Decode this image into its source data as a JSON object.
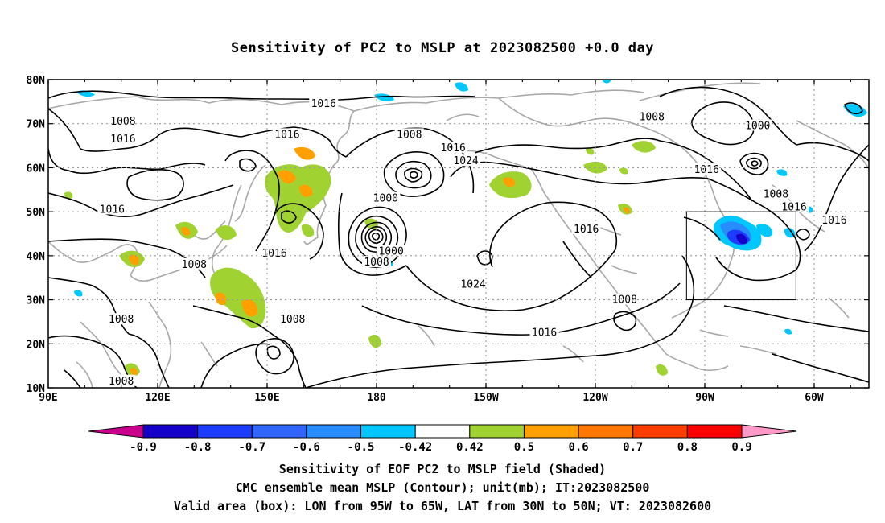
{
  "title": "Sensitivity of PC2 to MSLP at 2023082500 +0.0 day",
  "map": {
    "lon_ticks": [
      {
        "lon": 90,
        "label": "90E"
      },
      {
        "lon": 120,
        "label": "120E"
      },
      {
        "lon": 150,
        "label": "150E"
      },
      {
        "lon": 180,
        "label": "180"
      },
      {
        "lon": 210,
        "label": "150W"
      },
      {
        "lon": 240,
        "label": "120W"
      },
      {
        "lon": 270,
        "label": "90W"
      },
      {
        "lon": 300,
        "label": "60W"
      }
    ],
    "lat_ticks": [
      {
        "lat": 10,
        "label": "10N"
      },
      {
        "lat": 20,
        "label": "20N"
      },
      {
        "lat": 30,
        "label": "30N"
      },
      {
        "lat": 40,
        "label": "40N"
      },
      {
        "lat": 50,
        "label": "50N"
      },
      {
        "lat": 60,
        "label": "60N"
      },
      {
        "lat": 70,
        "label": "70N"
      },
      {
        "lat": 80,
        "label": "80N"
      }
    ],
    "lon_range": [
      90,
      315
    ],
    "lat_range": [
      10,
      80
    ],
    "valid_box": {
      "lon_min": 265,
      "lon_max": 295,
      "lat_min": 30,
      "lat_max": 50
    },
    "contour_labels": [
      {
        "lon": 165.5,
        "lat": 74.5,
        "text": "1016"
      },
      {
        "lon": 110.5,
        "lat": 70.5,
        "text": "1008"
      },
      {
        "lon": 110.5,
        "lat": 66.5,
        "text": "1016"
      },
      {
        "lon": 155.5,
        "lat": 67.5,
        "text": "1016"
      },
      {
        "lon": 107.5,
        "lat": 50.5,
        "text": "1016"
      },
      {
        "lon": 152.0,
        "lat": 40.5,
        "text": "1016"
      },
      {
        "lon": 130.0,
        "lat": 38.0,
        "text": "1008"
      },
      {
        "lon": 110.0,
        "lat": 25.5,
        "text": "1008"
      },
      {
        "lon": 110.0,
        "lat": 11.5,
        "text": "1008"
      },
      {
        "lon": 157.0,
        "lat": 25.5,
        "text": "1008"
      },
      {
        "lon": 189.0,
        "lat": 67.5,
        "text": "1008"
      },
      {
        "lon": 201.0,
        "lat": 64.5,
        "text": "1016"
      },
      {
        "lon": 204.5,
        "lat": 61.5,
        "text": "1024"
      },
      {
        "lon": 182.5,
        "lat": 53.0,
        "text": "1000"
      },
      {
        "lon": 184.0,
        "lat": 41.0,
        "text": "1000"
      },
      {
        "lon": 180.0,
        "lat": 38.5,
        "text": "1008"
      },
      {
        "lon": 206.5,
        "lat": 33.5,
        "text": "1024"
      },
      {
        "lon": 226.0,
        "lat": 22.5,
        "text": "1016"
      },
      {
        "lon": 255.5,
        "lat": 71.5,
        "text": "1008"
      },
      {
        "lon": 237.5,
        "lat": 46.0,
        "text": "1016"
      },
      {
        "lon": 248.0,
        "lat": 30.0,
        "text": "1008"
      },
      {
        "lon": 270.5,
        "lat": 59.5,
        "text": "1016"
      },
      {
        "lon": 284.5,
        "lat": 69.5,
        "text": "1000"
      },
      {
        "lon": 289.5,
        "lat": 54.0,
        "text": "1008"
      },
      {
        "lon": 294.5,
        "lat": 51.0,
        "text": "1016"
      },
      {
        "lon": 305.5,
        "lat": 48.0,
        "text": "1016"
      }
    ]
  },
  "colorbar": {
    "colors": [
      "#c8008c",
      "#1400c8",
      "#1e3cff",
      "#3264ff",
      "#288cff",
      "#00c8ff",
      "#ffffff",
      "#a0d232",
      "#ffa000",
      "#ff7800",
      "#ff3c00",
      "#ff0000",
      "#ff9ac8"
    ],
    "labels": [
      "-0.9",
      "-0.8",
      "-0.7",
      "-0.6",
      "-0.5",
      "-0.42",
      "0.42",
      "0.5",
      "0.6",
      "0.7",
      "0.8",
      "0.9"
    ]
  },
  "footer": {
    "line1": "Sensitivity of EOF PC2 to MSLP field (Shaded)",
    "line2": "CMC ensemble mean MSLP (Contour); unit(mb); IT:2023082500",
    "line3": "Valid area (box): LON from 95W to 65W, LAT from 30N to 50N; VT: 2023082600"
  }
}
